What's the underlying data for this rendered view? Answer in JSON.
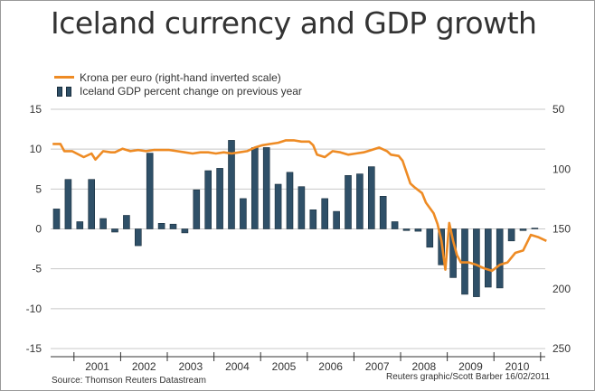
{
  "title": "Iceland currency and GDP growth",
  "legend": {
    "line_label": "Krona per euro (right-hand inverted scale)",
    "bar_label": "Iceland GDP percent change on previous year"
  },
  "footer": {
    "source": "Source: Thomson Reuters Datastream",
    "credit": "Reuters graphic/Scott Barber 16/02/2011"
  },
  "colors": {
    "bars": "#2f5068",
    "bar_border": "#1a2e3d",
    "line": "#ee8b24",
    "grid": "#c8c8c8"
  },
  "chart_data": {
    "type": "bar+line",
    "title": "Iceland currency and GDP growth",
    "x_tick_labels": [
      "2001",
      "2002",
      "2003",
      "2004",
      "2005",
      "2006",
      "2007",
      "2008",
      "2009",
      "2010"
    ],
    "left_axis": {
      "ticks": [
        15,
        10,
        5,
        0,
        -5,
        -10,
        -15
      ],
      "ylim": [
        -15,
        15
      ]
    },
    "right_axis": {
      "ticks": [
        50,
        100,
        150,
        200,
        250
      ],
      "ylim": [
        50,
        250
      ],
      "inverted": true
    },
    "grid": "horizontal",
    "series": [
      {
        "name": "Iceland GDP percent change on previous year",
        "kind": "bar",
        "axis": "left",
        "x": [
          "2000-Q3",
          "2000-Q4",
          "2001-Q1",
          "2001-Q2",
          "2001-Q3",
          "2001-Q4",
          "2002-Q1",
          "2002-Q2",
          "2002-Q3",
          "2002-Q4",
          "2003-Q1",
          "2003-Q2",
          "2003-Q3",
          "2003-Q4",
          "2004-Q1",
          "2004-Q2",
          "2004-Q3",
          "2004-Q4",
          "2005-Q1",
          "2005-Q2",
          "2005-Q3",
          "2005-Q4",
          "2006-Q1",
          "2006-Q2",
          "2006-Q3",
          "2006-Q4",
          "2007-Q1",
          "2007-Q2",
          "2007-Q3",
          "2007-Q4",
          "2008-Q1",
          "2008-Q2",
          "2008-Q3",
          "2008-Q4",
          "2009-Q1",
          "2009-Q2",
          "2009-Q3",
          "2009-Q4",
          "2010-Q1",
          "2010-Q2",
          "2010-Q3",
          "2010-Q4"
        ],
        "values": [
          2.5,
          6.2,
          0.9,
          6.2,
          1.3,
          -0.4,
          1.7,
          -2.1,
          9.5,
          0.7,
          0.6,
          -0.5,
          4.9,
          7.3,
          7.6,
          11.1,
          3.8,
          10.2,
          10.2,
          5.6,
          7.1,
          5.3,
          2.4,
          3.8,
          2.2,
          6.7,
          6.9,
          7.8,
          4.1,
          0.9,
          -0.2,
          -0.3,
          -2.3,
          -4.5,
          -6.1,
          -8.2,
          -8.5,
          -7.3,
          -7.4,
          -1.5,
          -0.2,
          0.1
        ]
      },
      {
        "name": "Krona per euro (right-hand inverted scale)",
        "kind": "line",
        "axis": "right",
        "x": [
          "2000-07",
          "2000-09",
          "2000-10",
          "2000-12",
          "2001-03",
          "2001-05",
          "2001-06",
          "2001-08",
          "2001-10",
          "2001-11",
          "2002-01",
          "2002-03",
          "2002-05",
          "2002-07",
          "2002-09",
          "2002-11",
          "2003-01",
          "2003-03",
          "2003-05",
          "2003-07",
          "2003-09",
          "2003-11",
          "2004-01",
          "2004-03",
          "2004-05",
          "2004-07",
          "2004-09",
          "2004-11",
          "2005-01",
          "2005-03",
          "2005-05",
          "2005-07",
          "2005-09",
          "2005-11",
          "2006-01",
          "2006-02",
          "2006-03",
          "2006-05",
          "2006-07",
          "2006-09",
          "2006-11",
          "2007-01",
          "2007-03",
          "2007-05",
          "2007-07",
          "2007-09",
          "2007-10",
          "2007-12",
          "2008-01",
          "2008-03",
          "2008-04",
          "2008-06",
          "2008-07",
          "2008-09",
          "2008-10",
          "2008-11",
          "2008-12",
          "2009-01",
          "2009-02",
          "2009-03",
          "2009-04",
          "2009-06",
          "2009-08",
          "2009-10",
          "2009-12",
          "2010-02",
          "2010-04",
          "2010-06",
          "2010-08",
          "2010-10",
          "2010-12",
          "2011-02"
        ],
        "values": [
          79,
          79,
          85,
          85,
          90,
          87,
          92,
          85,
          86,
          86,
          83,
          85,
          84,
          85,
          84,
          84,
          84,
          85,
          86,
          87,
          86,
          86,
          87,
          86,
          87,
          86,
          85,
          82,
          80,
          79,
          78,
          76,
          76,
          77,
          77,
          80,
          88,
          90,
          85,
          86,
          88,
          87,
          86,
          84,
          82,
          85,
          88,
          89,
          93,
          112,
          115,
          120,
          128,
          137,
          146,
          160,
          184,
          145,
          160,
          172,
          178,
          178,
          180,
          183,
          185,
          180,
          178,
          170,
          168,
          155,
          157,
          160
        ]
      }
    ]
  }
}
